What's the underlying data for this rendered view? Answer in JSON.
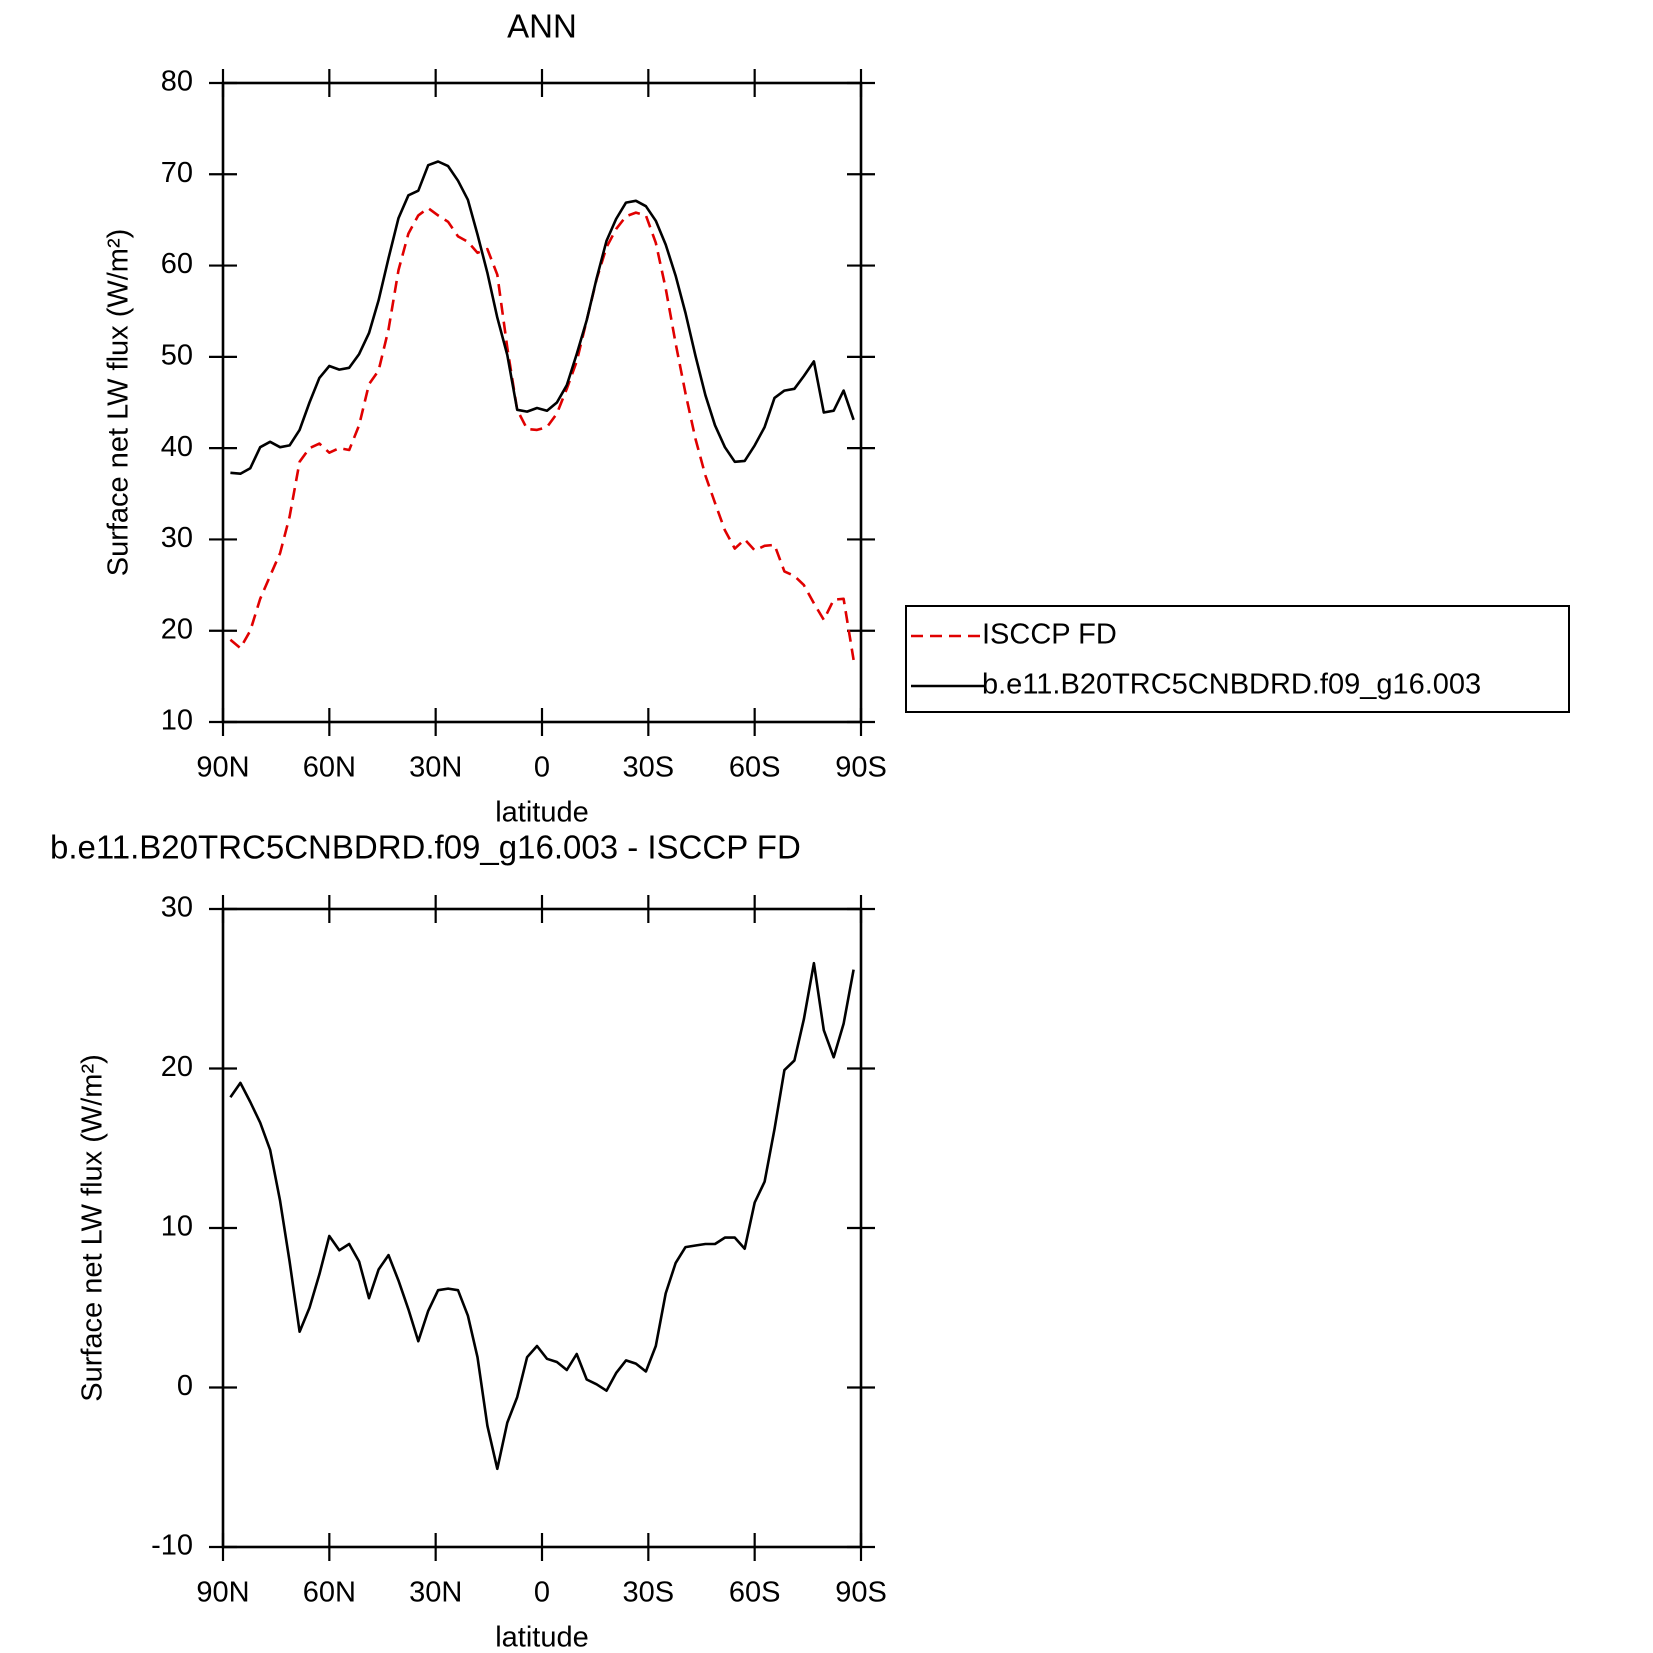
{
  "chart_data": [
    {
      "type": "line",
      "title": "ANN",
      "x_label": "latitude",
      "y_label": "Surface net LW flux (W/m²)",
      "xlim": [
        90,
        -90
      ],
      "ylim": [
        10,
        80
      ],
      "xticks": [
        {
          "value": 90,
          "label": "90N"
        },
        {
          "value": 60,
          "label": "60N"
        },
        {
          "value": 30,
          "label": "30N"
        },
        0,
        {
          "value": -30,
          "label": "30S"
        },
        {
          "value": -60,
          "label": "60S"
        },
        {
          "value": -90,
          "label": "90S"
        }
      ],
      "yticks": [
        10,
        20,
        30,
        40,
        50,
        60,
        70,
        80
      ],
      "legend": "right",
      "x": [
        87.9,
        85.1,
        82.3,
        79.5,
        76.7,
        73.9,
        71.2,
        68.4,
        65.6,
        62.8,
        60.0,
        57.2,
        54.4,
        51.6,
        48.8,
        46.1,
        43.3,
        40.5,
        37.7,
        34.9,
        32.1,
        29.3,
        26.5,
        23.7,
        20.9,
        18.2,
        15.4,
        12.6,
        9.8,
        7.0,
        4.2,
        1.4,
        -1.4,
        -4.2,
        -7.0,
        -9.8,
        -12.6,
        -15.4,
        -18.2,
        -20.9,
        -23.7,
        -26.5,
        -29.3,
        -32.1,
        -34.9,
        -37.7,
        -40.5,
        -43.3,
        -46.1,
        -48.8,
        -51.6,
        -54.4,
        -57.2,
        -60.0,
        -62.8,
        -65.6,
        -68.4,
        -71.2,
        -73.9,
        -76.7,
        -79.5,
        -82.3,
        -85.1,
        -87.9
      ],
      "series": [
        {
          "name": "ISCCP FD",
          "color": "#e00000",
          "dashed": true,
          "values": [
            19.0,
            18.1,
            20.0,
            23.5,
            26.0,
            28.5,
            32.5,
            38.5,
            40.0,
            40.5,
            39.5,
            40.0,
            39.8,
            42.5,
            47.0,
            48.5,
            53.0,
            59.5,
            63.5,
            65.5,
            66.3,
            65.5,
            64.8,
            63.2,
            62.6,
            61.4,
            61.8,
            59.0,
            51.0,
            44.2,
            42.1,
            42.0,
            42.3,
            43.8,
            46.5,
            49.5,
            54.0,
            58.5,
            62.0,
            64.0,
            65.4,
            65.8,
            65.5,
            62.5,
            57.5,
            51.5,
            46.0,
            41.0,
            37.0,
            34.0,
            31.0,
            29.0,
            30.0,
            28.8,
            29.3,
            29.4,
            26.5,
            26.0,
            25.0,
            23.0,
            21.2,
            23.4,
            23.5,
            16.8
          ]
        },
        {
          "name": "b.e11.B20TRC5CNBDRD.f09_g16.003",
          "color": "#000000",
          "dashed": false,
          "values": [
            37.3,
            37.2,
            37.8,
            40.1,
            40.7,
            40.1,
            40.3,
            42.0,
            45.0,
            47.7,
            49.0,
            48.6,
            48.8,
            50.3,
            52.6,
            56.2,
            60.8,
            65.2,
            67.7,
            68.2,
            71.0,
            71.4,
            70.9,
            69.3,
            67.2,
            63.4,
            59.2,
            54.3,
            50.2,
            44.2,
            44.0,
            44.4,
            44.1,
            45.0,
            46.9,
            50.3,
            54.0,
            58.6,
            62.7,
            65.1,
            66.9,
            67.1,
            66.5,
            64.9,
            62.3,
            58.9,
            54.8,
            50.1,
            45.8,
            42.5,
            40.1,
            38.5,
            38.6,
            40.3,
            42.3,
            45.5,
            46.3,
            46.5,
            47.9,
            49.5,
            43.9,
            44.1,
            46.3,
            43.1
          ]
        }
      ]
    },
    {
      "type": "line",
      "title": "b.e11.B20TRC5CNBDRD.f09_g16.003 - ISCCP FD",
      "x_label": "latitude",
      "y_label": "Surface net LW flux (W/m²)",
      "xlim": [
        90,
        -90
      ],
      "ylim": [
        -10,
        30
      ],
      "xticks": [
        {
          "value": 90,
          "label": "90N"
        },
        {
          "value": 60,
          "label": "60N"
        },
        {
          "value": 30,
          "label": "30N"
        },
        0,
        {
          "value": -30,
          "label": "30S"
        },
        {
          "value": -60,
          "label": "60S"
        },
        {
          "value": -90,
          "label": "90S"
        }
      ],
      "yticks": [
        -10,
        0,
        10,
        20,
        30
      ],
      "x": [
        87.9,
        85.1,
        82.3,
        79.5,
        76.7,
        73.9,
        71.2,
        68.4,
        65.6,
        62.8,
        60.0,
        57.2,
        54.4,
        51.6,
        48.8,
        46.1,
        43.3,
        40.5,
        37.7,
        34.9,
        32.1,
        29.3,
        26.5,
        23.7,
        20.9,
        18.2,
        15.4,
        12.6,
        9.8,
        7.0,
        4.2,
        1.4,
        -1.4,
        -4.2,
        -7.0,
        -9.8,
        -12.6,
        -15.4,
        -18.2,
        -20.9,
        -23.7,
        -26.5,
        -29.3,
        -32.1,
        -34.9,
        -37.7,
        -40.5,
        -43.3,
        -46.1,
        -48.8,
        -51.6,
        -54.4,
        -57.2,
        -60.0,
        -62.8,
        -65.6,
        -68.4,
        -71.2,
        -73.9,
        -76.7,
        -79.5,
        -82.3,
        -85.1,
        -87.9
      ],
      "series": [
        {
          "color": "#000000",
          "dashed": false,
          "values": [
            18.2,
            19.1,
            17.9,
            16.6,
            14.9,
            11.7,
            7.9,
            3.5,
            5.0,
            7.1,
            9.5,
            8.6,
            9.0,
            7.9,
            5.6,
            7.4,
            8.3,
            6.7,
            4.9,
            2.9,
            4.8,
            6.1,
            6.2,
            6.1,
            4.5,
            1.9,
            -2.4,
            -5.1,
            -2.2,
            -0.6,
            1.9,
            2.6,
            1.8,
            1.6,
            1.1,
            2.1,
            0.5,
            0.2,
            -0.2,
            0.9,
            1.7,
            1.5,
            1.0,
            2.6,
            5.9,
            7.8,
            8.8,
            8.9,
            9.0,
            9.0,
            9.4,
            9.4,
            8.7,
            11.6,
            12.9,
            16.2,
            19.9,
            20.5,
            23.1,
            26.6,
            22.4,
            20.7,
            22.8,
            26.2
          ]
        }
      ]
    }
  ]
}
